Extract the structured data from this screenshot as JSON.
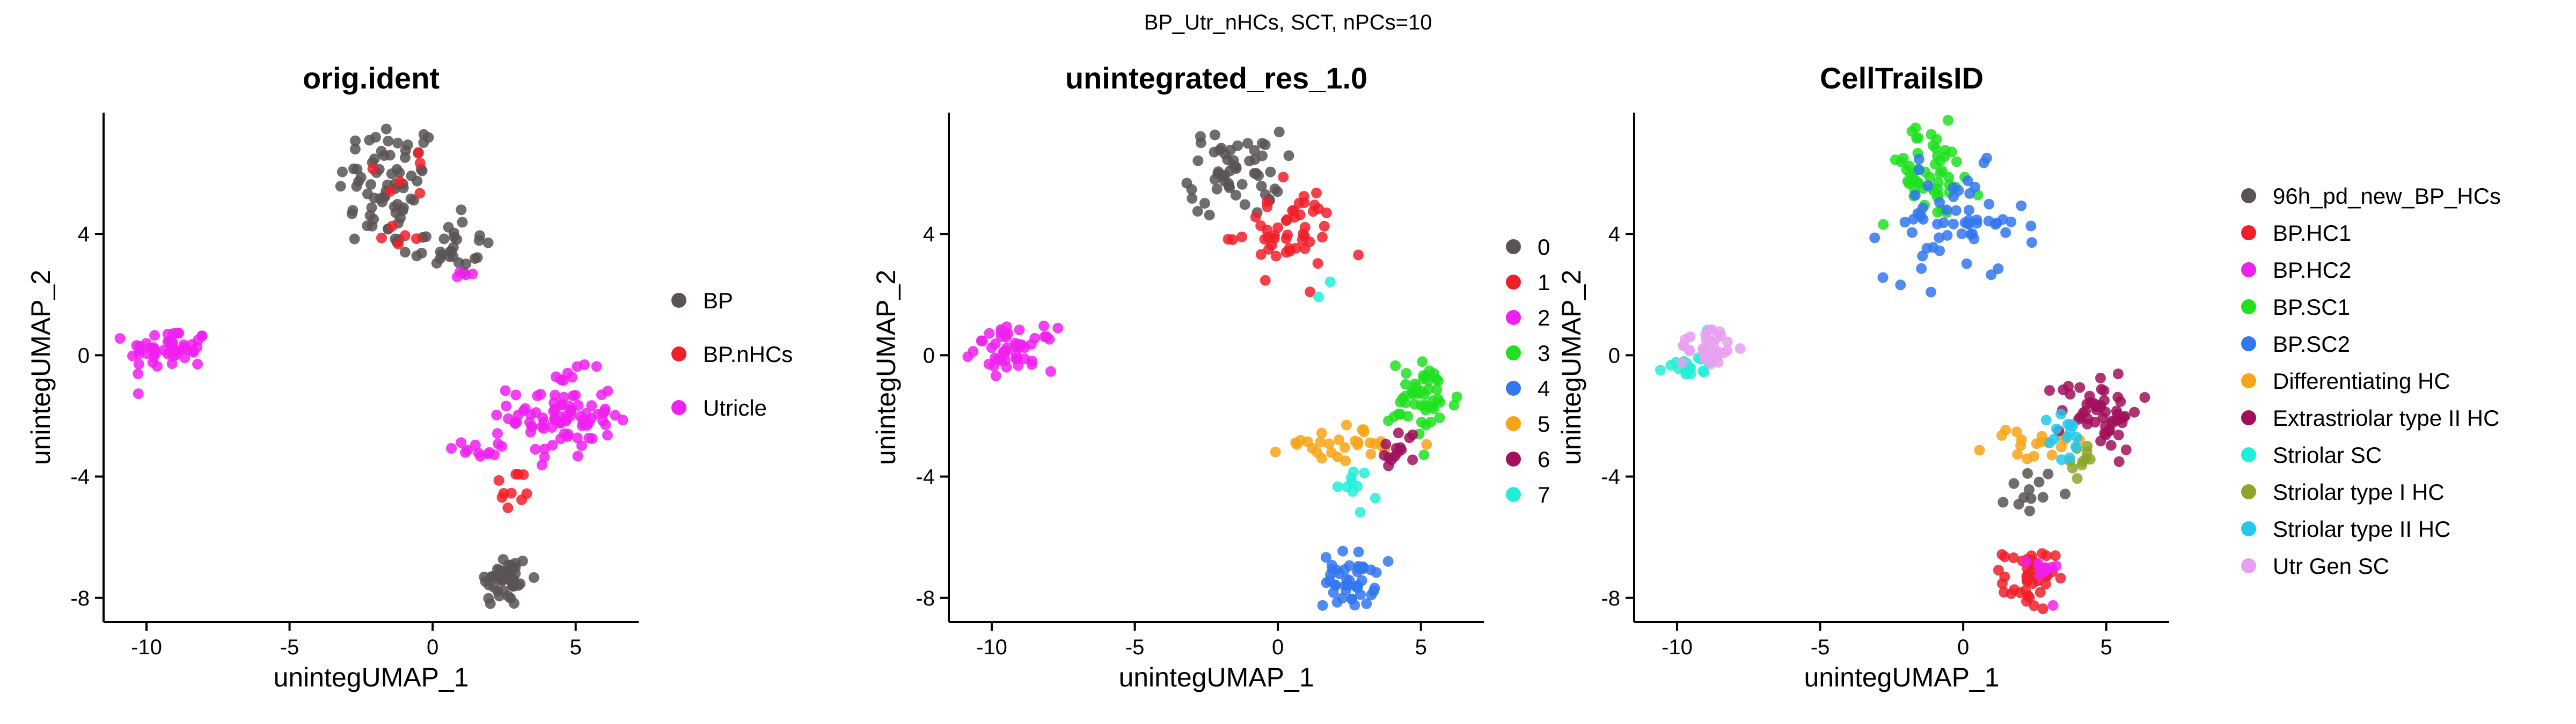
{
  "figure": {
    "suptitle": "BP_Utr_nHCs, SCT, nPCs=10"
  },
  "chart_data": [
    {
      "type": "scatter",
      "title": "orig.ident",
      "xlabel": "unintegUMAP_1",
      "ylabel": "unintegUMAP_2",
      "xlim": [
        -11.5,
        7.2
      ],
      "ylim": [
        -8.8,
        8.0
      ],
      "xticks": [
        -10,
        -5,
        0,
        5
      ],
      "yticks": [
        -8,
        -4,
        0,
        4
      ],
      "legend": {
        "placement": "right",
        "title": ""
      },
      "series": [
        {
          "name": "BP",
          "color": "#595353",
          "clusters": [
            {
              "cx": -1.5,
              "cy": 5.6,
              "sx": 0.9,
              "sy": 1.1,
              "n": 70
            },
            {
              "cx": 0.5,
              "cy": 3.6,
              "sx": 0.8,
              "sy": 0.5,
              "n": 30
            },
            {
              "cx": 2.5,
              "cy": -7.4,
              "sx": 0.45,
              "sy": 0.45,
              "n": 45
            }
          ]
        },
        {
          "name": "BP.nHCs",
          "color": "#F0202A",
          "clusters": [
            {
              "cx": -0.8,
              "cy": 6.0,
              "sx": 0.6,
              "sy": 0.5,
              "n": 6
            },
            {
              "cx": -1.0,
              "cy": 4.0,
              "sx": 0.5,
              "sy": 0.3,
              "n": 5
            },
            {
              "cx": 2.8,
              "cy": -4.5,
              "sx": 0.35,
              "sy": 0.4,
              "n": 10
            }
          ]
        },
        {
          "name": "Utricle",
          "color": "#F020F0",
          "clusters": [
            {
              "cx": -9.2,
              "cy": 0.2,
              "sx": 0.7,
              "sy": 0.35,
              "n": 50
            },
            {
              "cx": 4.5,
              "cy": -2.0,
              "sx": 0.9,
              "sy": 0.7,
              "n": 90
            },
            {
              "cx": 1.6,
              "cy": -3.1,
              "sx": 0.7,
              "sy": 0.15,
              "n": 12
            },
            {
              "cx": 1.2,
              "cy": 2.8,
              "sx": 0.25,
              "sy": 0.3,
              "n": 4
            }
          ]
        }
      ]
    },
    {
      "type": "scatter",
      "title": "unintegrated_res_1.0",
      "xlabel": "unintegUMAP_1",
      "ylabel": "unintegUMAP_2",
      "xlim": [
        -11.5,
        7.2
      ],
      "ylim": [
        -8.8,
        8.0
      ],
      "xticks": [
        -10,
        -5,
        0,
        5
      ],
      "yticks": [
        -8,
        -4,
        0,
        4
      ],
      "legend": {
        "placement": "right",
        "title": ""
      },
      "series": [
        {
          "name": "0",
          "color": "#595353",
          "clusters": [
            {
              "cx": -1.5,
              "cy": 6.0,
              "sx": 0.8,
              "sy": 0.7,
              "n": 55
            }
          ]
        },
        {
          "name": "1",
          "color": "#F0202A",
          "clusters": [
            {
              "cx": 0.3,
              "cy": 4.1,
              "sx": 0.9,
              "sy": 0.7,
              "n": 50
            }
          ]
        },
        {
          "name": "2",
          "color": "#F020F0",
          "clusters": [
            {
              "cx": -9.2,
              "cy": 0.2,
              "sx": 0.7,
              "sy": 0.35,
              "n": 50
            }
          ]
        },
        {
          "name": "3",
          "color": "#20E020",
          "clusters": [
            {
              "cx": 5.1,
              "cy": -1.5,
              "sx": 0.6,
              "sy": 0.65,
              "n": 50
            }
          ]
        },
        {
          "name": "4",
          "color": "#3377EE",
          "clusters": [
            {
              "cx": 2.5,
              "cy": -7.4,
              "sx": 0.45,
              "sy": 0.45,
              "n": 45
            }
          ]
        },
        {
          "name": "5",
          "color": "#F7A418",
          "clusters": [
            {
              "cx": 2.2,
              "cy": -2.9,
              "sx": 1.0,
              "sy": 0.3,
              "n": 30
            }
          ]
        },
        {
          "name": "6",
          "color": "#A0105C",
          "clusters": [
            {
              "cx": 4.2,
              "cy": -3.1,
              "sx": 0.35,
              "sy": 0.35,
              "n": 14
            }
          ]
        },
        {
          "name": "7",
          "color": "#22EED8",
          "clusters": [
            {
              "cx": 2.8,
              "cy": -4.3,
              "sx": 0.35,
              "sy": 0.4,
              "n": 10
            },
            {
              "cx": 1.5,
              "cy": 2.5,
              "sx": 0.15,
              "sy": 0.15,
              "n": 2
            }
          ]
        }
      ]
    },
    {
      "type": "scatter",
      "title": "CellTrailsID",
      "xlabel": "unintegUMAP_1",
      "ylabel": "unintegUMAP_2",
      "xlim": [
        -11.5,
        7.2
      ],
      "ylim": [
        -8.8,
        8.0
      ],
      "xticks": [
        -10,
        -5,
        0,
        5
      ],
      "yticks": [
        -8,
        -4,
        0,
        4
      ],
      "legend": {
        "placement": "right",
        "title": ""
      },
      "series": [
        {
          "name": "96h_pd_new_BP_HCs",
          "color": "#595353",
          "clusters": [
            {
              "cx": 2.4,
              "cy": -4.5,
              "sx": 0.4,
              "sy": 0.4,
              "n": 12
            }
          ]
        },
        {
          "name": "BP.HC1",
          "color": "#F0202A",
          "clusters": [
            {
              "cx": 2.3,
              "cy": -7.4,
              "sx": 0.45,
              "sy": 0.5,
              "n": 45
            }
          ]
        },
        {
          "name": "BP.HC2",
          "color": "#F020F0",
          "clusters": [
            {
              "cx": 2.8,
              "cy": -7.2,
              "sx": 0.25,
              "sy": 0.35,
              "n": 10
            }
          ]
        },
        {
          "name": "BP.SC1",
          "color": "#20E020",
          "clusters": [
            {
              "cx": -1.2,
              "cy": 6.0,
              "sx": 0.9,
              "sy": 0.8,
              "n": 55
            }
          ]
        },
        {
          "name": "BP.SC2",
          "color": "#3377EE",
          "clusters": [
            {
              "cx": -0.3,
              "cy": 4.3,
              "sx": 1.2,
              "sy": 0.9,
              "n": 60
            }
          ]
        },
        {
          "name": "Differentiating HC",
          "color": "#F7A418",
          "clusters": [
            {
              "cx": 2.5,
              "cy": -3.0,
              "sx": 0.9,
              "sy": 0.3,
              "n": 18
            }
          ]
        },
        {
          "name": "Extrastriolar type II HC",
          "color": "#A0105C",
          "clusters": [
            {
              "cx": 4.8,
              "cy": -1.8,
              "sx": 0.7,
              "sy": 0.65,
              "n": 55
            }
          ]
        },
        {
          "name": "Striolar SC",
          "color": "#22EED8",
          "clusters": [
            {
              "cx": -9.6,
              "cy": -0.2,
              "sx": 0.4,
              "sy": 0.3,
              "n": 20
            }
          ]
        },
        {
          "name": "Striolar type I HC",
          "color": "#8DA52A",
          "clusters": [
            {
              "cx": 4.2,
              "cy": -3.4,
              "sx": 0.3,
              "sy": 0.3,
              "n": 10
            }
          ]
        },
        {
          "name": "Striolar type II HC",
          "color": "#22C8EE",
          "clusters": [
            {
              "cx": 3.7,
              "cy": -2.8,
              "sx": 0.35,
              "sy": 0.5,
              "n": 14
            }
          ]
        },
        {
          "name": "Utr Gen SC",
          "color": "#E7A0F0",
          "clusters": [
            {
              "cx": -8.9,
              "cy": 0.3,
              "sx": 0.5,
              "sy": 0.35,
              "n": 35
            }
          ]
        }
      ]
    }
  ]
}
